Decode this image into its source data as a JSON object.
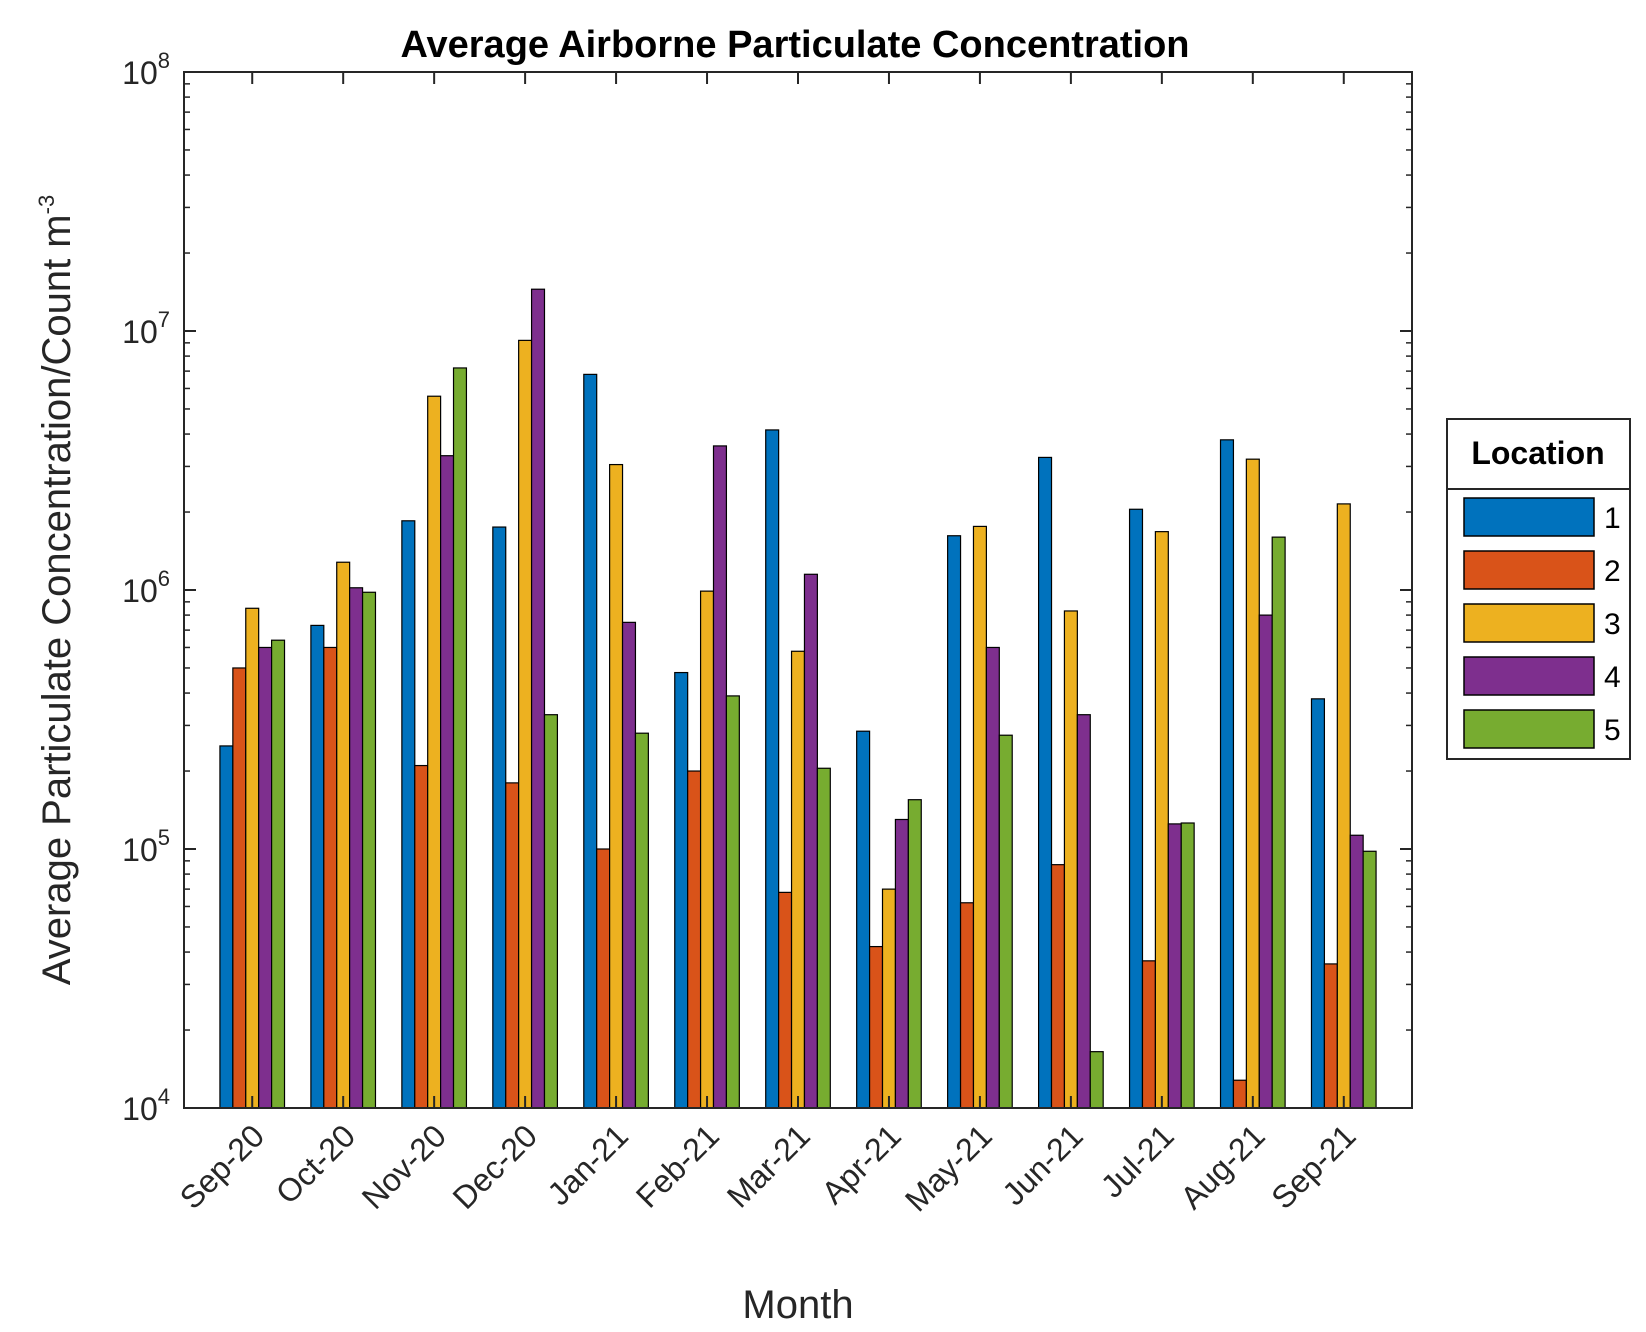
{
  "chart_data": {
    "type": "bar",
    "title": "Average Airborne Particulate Concentration",
    "xlabel": "Month",
    "ylabel": "Average Particulate Concentration/Count m",
    "ylabel_superscript": "-3",
    "yscale": "log",
    "ylim": [
      10000,
      100000000
    ],
    "y_tick_base": "10",
    "y_tick_exponents": [
      "4",
      "5",
      "6",
      "7",
      "8"
    ],
    "categories": [
      "Sep-20",
      "Oct-20",
      "Nov-20",
      "Dec-20",
      "Jan-21",
      "Feb-21",
      "Mar-21",
      "Apr-21",
      "May-21",
      "Jun-21",
      "Jul-21",
      "Aug-21",
      "Sep-21"
    ],
    "legend_title": "Location",
    "legend_position": "right",
    "series": [
      {
        "name": "1",
        "color": "#0072BD",
        "values": [
          250000,
          730000,
          1850000,
          1750000,
          6800000,
          480000,
          4150000,
          285000,
          1620000,
          3250000,
          2050000,
          3800000,
          380000
        ]
      },
      {
        "name": "2",
        "color": "#D95319",
        "values": [
          500000,
          600000,
          210000,
          180000,
          100000,
          200000,
          68000,
          42000,
          62000,
          87000,
          37000,
          12800,
          36000
        ]
      },
      {
        "name": "3",
        "color": "#EDB120",
        "values": [
          850000,
          1280000,
          5600000,
          9200000,
          3050000,
          990000,
          580000,
          70000,
          1760000,
          830000,
          1680000,
          3200000,
          2150000
        ]
      },
      {
        "name": "4",
        "color": "#7E2F8E",
        "values": [
          600000,
          1020000,
          3300000,
          14500000,
          750000,
          3600000,
          1150000,
          130000,
          600000,
          330000,
          125000,
          800000,
          113000
        ]
      },
      {
        "name": "5",
        "color": "#77AC30",
        "values": [
          640000,
          980000,
          7200000,
          330000,
          280000,
          390000,
          205000,
          155000,
          275000,
          16500,
          126000,
          1600000,
          98000
        ]
      }
    ]
  }
}
